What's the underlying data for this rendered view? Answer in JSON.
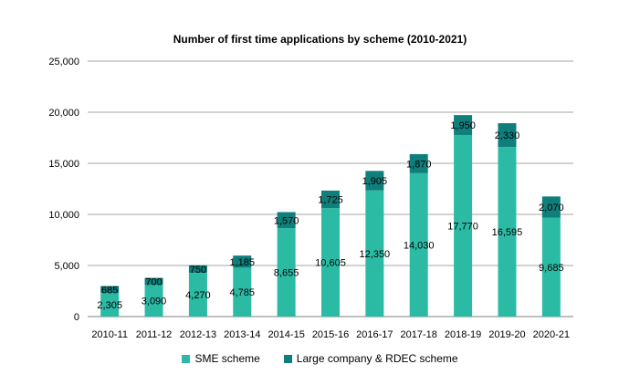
{
  "chart_data": {
    "type": "bar",
    "stacked": true,
    "title": "Number of first time applications by scheme (2010-2021)",
    "xlabel": "",
    "ylabel": "",
    "ylim": [
      0,
      25000
    ],
    "yticks": [
      "0",
      "5,000",
      "10,000",
      "15,000",
      "20,000",
      "25,000"
    ],
    "ytick_values": [
      0,
      5000,
      10000,
      15000,
      20000,
      25000
    ],
    "grid": true,
    "legend_position": "bottom",
    "categories": [
      "2010-11",
      "2011-12",
      "2012-13",
      "2013-14",
      "2014-15",
      "2015-16",
      "2016-17",
      "2017-18",
      "2018-19",
      "2019-20",
      "2020-21"
    ],
    "series": [
      {
        "name": "SME scheme",
        "color": "#2bbba5",
        "values": [
          2305,
          3090,
          4270,
          4785,
          8655,
          10605,
          12350,
          14030,
          17770,
          16595,
          9685
        ],
        "labels": [
          "2,305",
          "3,090",
          "4,270",
          "4,785",
          "8,655",
          "10,605",
          "12,350",
          "14,030",
          "17,770",
          "16,595",
          "9,685"
        ]
      },
      {
        "name": "Large company & RDEC scheme",
        "color": "#0f7f7c",
        "values": [
          685,
          700,
          750,
          1185,
          1570,
          1725,
          1905,
          1870,
          1950,
          2330,
          2070
        ],
        "labels": [
          "685",
          "700",
          "750",
          "1,185",
          "1,570",
          "1,725",
          "1,905",
          "1,870",
          "1,950",
          "2,330",
          "2,070"
        ]
      }
    ]
  }
}
